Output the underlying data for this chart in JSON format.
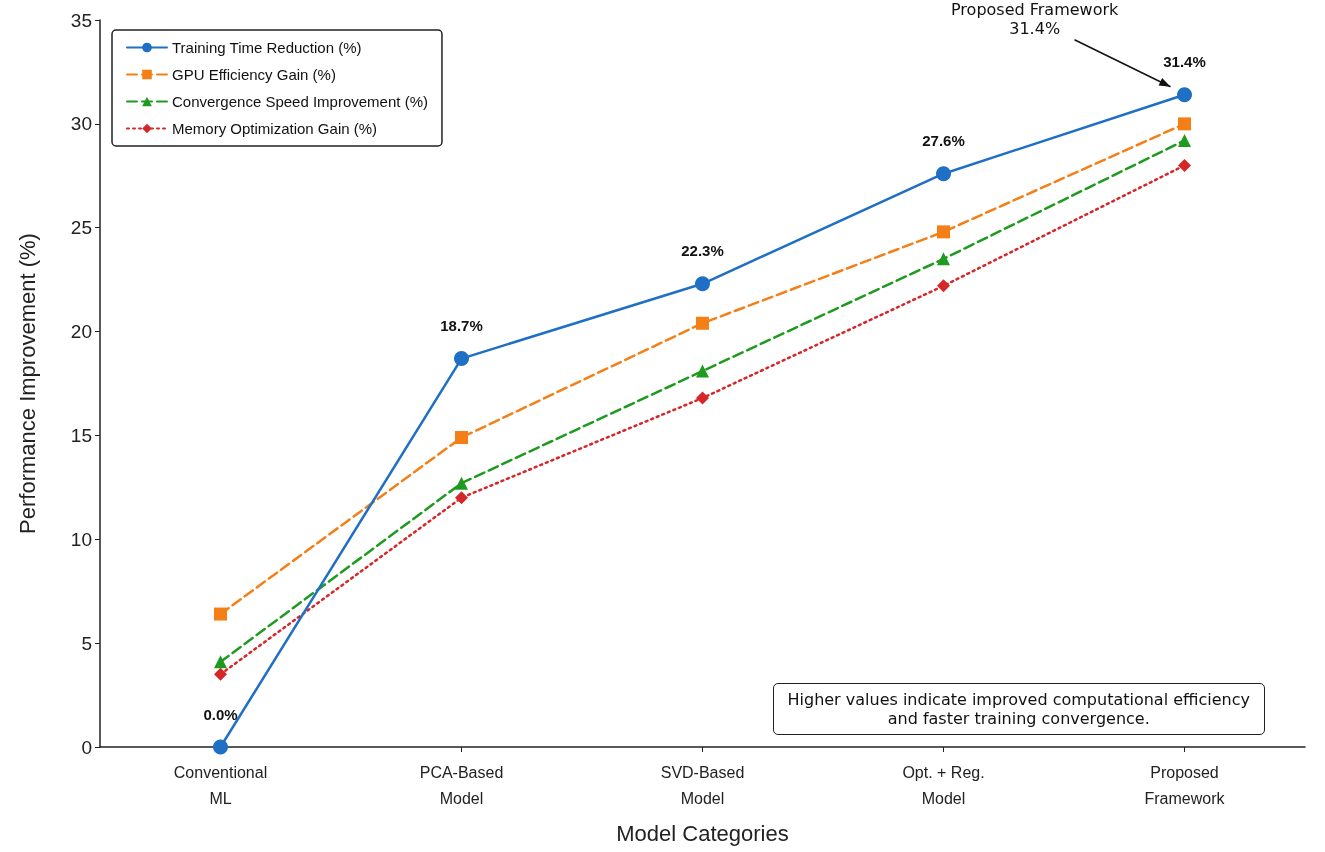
{
  "chart_data": {
    "type": "line",
    "xlabel": "Model Categories",
    "ylabel": "Performance Improvement (%)",
    "categories": [
      "Conventional\nML",
      "PCA-Based\nModel",
      "SVD-Based\nModel",
      "Opt. + Reg.\nModel",
      "Proposed\nFramework"
    ],
    "series": [
      {
        "name": "Training Time Reduction (%)",
        "color": "#1f6fc5",
        "values": [
          0.0,
          18.7,
          22.3,
          27.6,
          31.4
        ],
        "value_labels": [
          "0.0%",
          "18.7%",
          "22.3%",
          "27.6%",
          "31.4%"
        ],
        "marker": "circle",
        "line_style": "solid"
      },
      {
        "name": "GPU Efficiency Gain (%)",
        "color": "#f57f17",
        "values": [
          6.4,
          14.9,
          20.4,
          24.8,
          30.0
        ],
        "marker": "square",
        "line_style": "dashed"
      },
      {
        "name": "Convergence Speed Improvement (%)",
        "color": "#1e9a1e",
        "values": [
          4.1,
          12.7,
          18.1,
          23.5,
          29.2
        ],
        "marker": "triangle",
        "line_style": "dashed"
      },
      {
        "name": "Memory Optimization Gain (%)",
        "color": "#d62728",
        "values": [
          3.5,
          12.0,
          16.8,
          22.2,
          28.0
        ],
        "marker": "diamond",
        "line_style": "dotted"
      }
    ],
    "ylim": [
      0,
      35
    ],
    "yticks": [
      0,
      5,
      10,
      15,
      20,
      25,
      30,
      35
    ],
    "grid": false,
    "legend": "top left",
    "annotations": [
      "Proposed Framework\n31.4%",
      "Higher values indicate improved computational efficiency\nand faster training convergence."
    ]
  }
}
